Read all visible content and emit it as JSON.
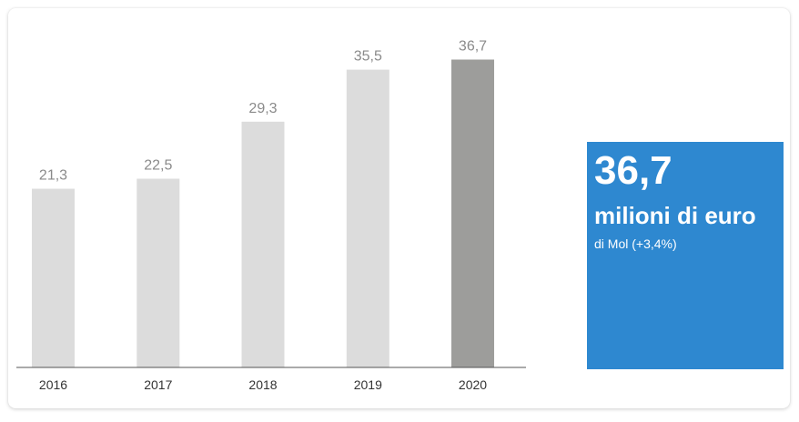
{
  "chart_data": {
    "type": "bar",
    "categories": [
      "2016",
      "2017",
      "2018",
      "2019",
      "2020"
    ],
    "values": [
      21.3,
      22.5,
      29.3,
      35.5,
      36.7
    ],
    "value_labels": [
      "21,3",
      "22,5",
      "29,3",
      "35,5",
      "36,7"
    ],
    "highlight_index": 4,
    "ylim": [
      0,
      40
    ],
    "grid": false,
    "title": "",
    "xlabel": "",
    "ylabel": "",
    "colors": {
      "bar": "#dcdcdc",
      "bar_highlight": "#9d9d9b",
      "value_label": "#8a8a8a",
      "axis": "#555555"
    }
  },
  "highlight": {
    "value": "36,7",
    "unit": "milioni di euro",
    "caption": "di Mol (+3,4%)",
    "color": "#2e88d0"
  }
}
